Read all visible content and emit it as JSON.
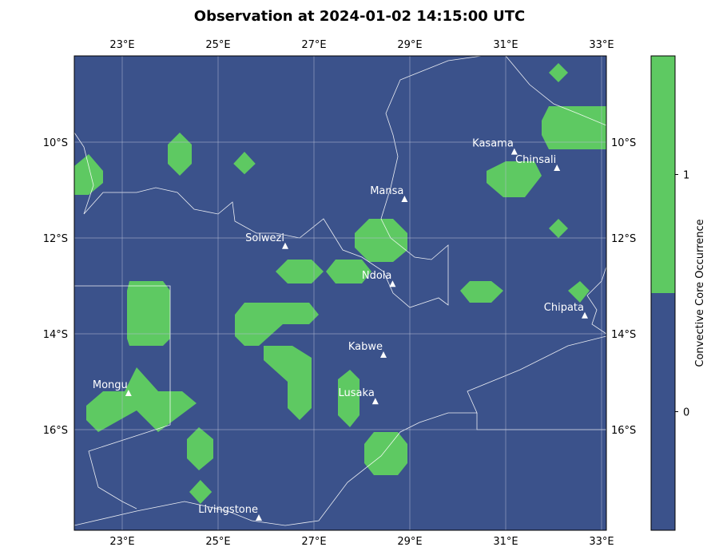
{
  "title": "Observation at 2024-01-02 14:15:00 UTC",
  "colors": {
    "background": "#3b528b",
    "core": "#5ec962",
    "border": "#ffffff",
    "grid": "#b7bfd6",
    "city_marker": "#ffffff"
  },
  "map": {
    "lon_range": [
      22,
      33.1
    ],
    "lat_range": [
      -18.1,
      -8.2
    ],
    "lon_ticks": [
      {
        "value": 23,
        "label": "23°E"
      },
      {
        "value": 25,
        "label": "25°E"
      },
      {
        "value": 27,
        "label": "27°E"
      },
      {
        "value": 29,
        "label": "29°E"
      },
      {
        "value": 31,
        "label": "31°E"
      },
      {
        "value": 33,
        "label": "33°E"
      }
    ],
    "lat_ticks": [
      {
        "value": -10,
        "label": "10°S"
      },
      {
        "value": -12,
        "label": "12°S"
      },
      {
        "value": -14,
        "label": "14°S"
      },
      {
        "value": -16,
        "label": "16°S"
      }
    ],
    "gridlines": true,
    "cities": [
      {
        "name": "Kasama",
        "lon": 31.18,
        "lat": -10.21
      },
      {
        "name": "Chinsali",
        "lon": 32.07,
        "lat": -10.55
      },
      {
        "name": "Mansa",
        "lon": 28.89,
        "lat": -11.2
      },
      {
        "name": "Solwezi",
        "lon": 26.4,
        "lat": -12.18
      },
      {
        "name": "Ndola",
        "lon": 28.64,
        "lat": -12.97
      },
      {
        "name": "Chipata",
        "lon": 32.65,
        "lat": -13.63
      },
      {
        "name": "Kabwe",
        "lon": 28.45,
        "lat": -14.45
      },
      {
        "name": "Mongu",
        "lon": 23.13,
        "lat": -15.25
      },
      {
        "name": "Lusaka",
        "lon": 28.28,
        "lat": -15.42
      },
      {
        "name": "Livingstone",
        "lon": 25.85,
        "lat": -17.85
      }
    ],
    "convective_cores": [
      [
        [
          32.1,
          -8.35
        ],
        [
          32.3,
          -8.55
        ],
        [
          32.1,
          -8.75
        ],
        [
          31.9,
          -8.55
        ]
      ],
      [
        [
          31.9,
          -9.25
        ],
        [
          33.1,
          -9.25
        ],
        [
          33.1,
          -10.15
        ],
        [
          31.9,
          -10.15
        ],
        [
          31.75,
          -9.85
        ],
        [
          31.75,
          -9.55
        ]
      ],
      [
        [
          31.0,
          -10.4
        ],
        [
          31.6,
          -10.4
        ],
        [
          31.75,
          -10.7
        ],
        [
          31.4,
          -11.15
        ],
        [
          30.95,
          -11.15
        ],
        [
          30.6,
          -10.85
        ],
        [
          30.6,
          -10.6
        ]
      ],
      [
        [
          22.3,
          -10.25
        ],
        [
          22.6,
          -10.6
        ],
        [
          22.6,
          -10.85
        ],
        [
          22.3,
          -11.1
        ],
        [
          22.0,
          -11.1
        ],
        [
          22.0,
          -10.5
        ]
      ],
      [
        [
          24.2,
          -9.8
        ],
        [
          24.45,
          -10.05
        ],
        [
          24.45,
          -10.45
        ],
        [
          24.2,
          -10.7
        ],
        [
          23.95,
          -10.45
        ],
        [
          23.95,
          -10.05
        ]
      ],
      [
        [
          25.55,
          -10.2
        ],
        [
          25.78,
          -10.45
        ],
        [
          25.55,
          -10.67
        ],
        [
          25.32,
          -10.45
        ]
      ],
      [
        [
          32.1,
          -11.6
        ],
        [
          32.3,
          -11.8
        ],
        [
          32.1,
          -12.0
        ],
        [
          31.9,
          -11.8
        ]
      ],
      [
        [
          28.15,
          -11.6
        ],
        [
          28.65,
          -11.6
        ],
        [
          28.95,
          -11.9
        ],
        [
          28.95,
          -12.25
        ],
        [
          28.65,
          -12.5
        ],
        [
          28.15,
          -12.5
        ],
        [
          27.85,
          -12.2
        ],
        [
          27.85,
          -11.9
        ]
      ],
      [
        [
          26.45,
          -12.45
        ],
        [
          26.95,
          -12.45
        ],
        [
          27.2,
          -12.7
        ],
        [
          26.95,
          -12.95
        ],
        [
          26.45,
          -12.95
        ],
        [
          26.2,
          -12.7
        ]
      ],
      [
        [
          27.45,
          -12.45
        ],
        [
          28.0,
          -12.45
        ],
        [
          28.2,
          -12.7
        ],
        [
          28.0,
          -12.95
        ],
        [
          27.45,
          -12.95
        ],
        [
          27.25,
          -12.7
        ]
      ],
      [
        [
          30.25,
          -12.9
        ],
        [
          30.7,
          -12.9
        ],
        [
          30.95,
          -13.1
        ],
        [
          30.7,
          -13.35
        ],
        [
          30.25,
          -13.35
        ],
        [
          30.05,
          -13.1
        ]
      ],
      [
        [
          32.55,
          -12.9
        ],
        [
          32.75,
          -13.1
        ],
        [
          32.55,
          -13.35
        ],
        [
          32.3,
          -13.1
        ]
      ],
      [
        [
          23.15,
          -12.9
        ],
        [
          23.85,
          -12.9
        ],
        [
          24.0,
          -13.1
        ],
        [
          24.0,
          -14.1
        ],
        [
          23.85,
          -14.25
        ],
        [
          23.15,
          -14.25
        ],
        [
          23.1,
          -14.1
        ],
        [
          23.1,
          -13.1
        ]
      ],
      [
        [
          25.55,
          -13.35
        ],
        [
          26.9,
          -13.35
        ],
        [
          27.1,
          -13.6
        ],
        [
          26.9,
          -13.8
        ],
        [
          26.35,
          -13.8
        ],
        [
          25.85,
          -14.25
        ],
        [
          25.55,
          -14.25
        ],
        [
          25.35,
          -14.05
        ],
        [
          25.35,
          -13.6
        ]
      ],
      [
        [
          25.95,
          -14.25
        ],
        [
          26.55,
          -14.25
        ],
        [
          26.95,
          -14.5
        ],
        [
          26.95,
          -15.55
        ],
        [
          26.7,
          -15.8
        ],
        [
          26.45,
          -15.55
        ],
        [
          26.45,
          -15.0
        ],
        [
          25.95,
          -14.55
        ]
      ],
      [
        [
          27.75,
          -14.75
        ],
        [
          27.95,
          -14.95
        ],
        [
          27.95,
          -15.7
        ],
        [
          27.75,
          -15.95
        ],
        [
          27.5,
          -15.7
        ],
        [
          27.5,
          -14.95
        ]
      ],
      [
        [
          23.3,
          -14.7
        ],
        [
          23.75,
          -15.2
        ],
        [
          24.25,
          -15.2
        ],
        [
          24.55,
          -15.45
        ],
        [
          23.75,
          -16.05
        ],
        [
          23.3,
          -15.6
        ],
        [
          22.5,
          -16.05
        ],
        [
          22.25,
          -15.8
        ],
        [
          22.25,
          -15.5
        ],
        [
          22.6,
          -15.2
        ],
        [
          23.05,
          -15.2
        ]
      ],
      [
        [
          24.6,
          -15.95
        ],
        [
          24.9,
          -16.2
        ],
        [
          24.9,
          -16.6
        ],
        [
          24.6,
          -16.85
        ],
        [
          24.35,
          -16.6
        ],
        [
          24.35,
          -16.2
        ]
      ],
      [
        [
          28.25,
          -16.05
        ],
        [
          28.75,
          -16.05
        ],
        [
          28.95,
          -16.3
        ],
        [
          28.95,
          -16.7
        ],
        [
          28.75,
          -16.95
        ],
        [
          28.25,
          -16.95
        ],
        [
          28.05,
          -16.7
        ],
        [
          28.05,
          -16.3
        ]
      ],
      [
        [
          24.63,
          -17.05
        ],
        [
          24.87,
          -17.3
        ],
        [
          24.63,
          -17.55
        ],
        [
          24.4,
          -17.3
        ]
      ]
    ],
    "borders": [
      [
        [
          22.0,
          -9.8
        ],
        [
          22.2,
          -10.1
        ],
        [
          22.4,
          -10.9
        ],
        [
          22.2,
          -11.5
        ],
        [
          22.6,
          -11.05
        ],
        [
          23.3,
          -11.05
        ],
        [
          23.7,
          -10.95
        ],
        [
          24.15,
          -11.05
        ],
        [
          24.5,
          -11.4
        ],
        [
          25.0,
          -11.5
        ],
        [
          25.3,
          -11.25
        ],
        [
          25.35,
          -11.65
        ],
        [
          25.8,
          -11.9
        ],
        [
          26.2,
          -11.9
        ],
        [
          26.7,
          -12.0
        ],
        [
          27.2,
          -11.6
        ],
        [
          27.6,
          -12.25
        ],
        [
          28.0,
          -12.4
        ],
        [
          28.45,
          -12.7
        ],
        [
          28.65,
          -13.15
        ],
        [
          29.0,
          -13.45
        ],
        [
          29.6,
          -13.25
        ],
        [
          29.8,
          -13.4
        ],
        [
          29.8,
          -12.15
        ],
        [
          29.45,
          -12.45
        ],
        [
          29.1,
          -12.4
        ],
        [
          28.6,
          -12.0
        ],
        [
          28.4,
          -11.6
        ],
        [
          28.6,
          -10.95
        ],
        [
          28.75,
          -10.3
        ],
        [
          28.65,
          -9.85
        ],
        [
          28.5,
          -9.4
        ],
        [
          28.8,
          -8.7
        ],
        [
          29.8,
          -8.3
        ],
        [
          30.5,
          -8.2
        ]
      ],
      [
        [
          31.0,
          -8.2
        ],
        [
          31.5,
          -8.8
        ],
        [
          32.0,
          -9.2
        ],
        [
          32.5,
          -9.4
        ],
        [
          33.1,
          -9.65
        ]
      ],
      [
        [
          33.1,
          -14.05
        ],
        [
          32.3,
          -14.25
        ],
        [
          31.3,
          -14.75
        ],
        [
          30.2,
          -15.2
        ],
        [
          30.4,
          -15.65
        ],
        [
          29.8,
          -15.65
        ],
        [
          29.2,
          -15.85
        ],
        [
          28.8,
          -16.05
        ],
        [
          28.4,
          -16.55
        ],
        [
          27.7,
          -17.1
        ],
        [
          27.1,
          -17.9
        ],
        [
          26.4,
          -18.0
        ],
        [
          25.7,
          -17.9
        ],
        [
          25.2,
          -17.7
        ],
        [
          24.3,
          -17.5
        ],
        [
          23.3,
          -17.7
        ],
        [
          22.0,
          -18.0
        ]
      ],
      [
        [
          22.0,
          -13.0
        ],
        [
          24.0,
          -13.0
        ],
        [
          24.0,
          -15.9
        ],
        [
          22.3,
          -16.45
        ],
        [
          22.5,
          -17.2
        ],
        [
          23.0,
          -17.5
        ],
        [
          23.3,
          -17.65
        ]
      ],
      [
        [
          30.4,
          -15.65
        ],
        [
          30.4,
          -16.0
        ],
        [
          33.1,
          -16.0
        ]
      ],
      [
        [
          33.1,
          -14.0
        ],
        [
          32.8,
          -13.8
        ],
        [
          32.9,
          -13.5
        ],
        [
          32.7,
          -13.2
        ],
        [
          33.0,
          -12.9
        ],
        [
          33.1,
          -12.6
        ]
      ]
    ]
  },
  "colorbar": {
    "label": "Convective Core Occurrence",
    "ticks": [
      {
        "value": 0,
        "label": "0"
      },
      {
        "value": 1,
        "label": "1"
      }
    ],
    "range": [
      -0.5,
      1.5
    ],
    "levels": [
      {
        "from": -0.5,
        "to": 0.5,
        "color": "#3b528b"
      },
      {
        "from": 0.5,
        "to": 1.5,
        "color": "#5ec962"
      }
    ]
  }
}
